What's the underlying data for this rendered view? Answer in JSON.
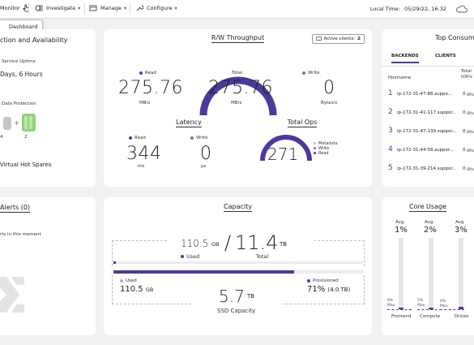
{
  "topbar": {
    "monitor": "Monitor",
    "investigate": "Investigate",
    "manage": "Manage",
    "configure": "Configure",
    "local_time_label": "Local Time:",
    "local_time_value": "05/29/22, 16:32",
    "tooltip": "Dashboard"
  },
  "colors": {
    "accent": "#4a3a9a",
    "green": "#8fd17a",
    "gray": "#c6c6c6"
  },
  "protection": {
    "title": "ction and Availability",
    "uptime_label": "Service Uptime",
    "uptime_value": "Days, 6 Hours",
    "dp_label": "Data Protection",
    "dp_left": "4",
    "dp_plus": "+",
    "dp_right": "2",
    "spares": "Virtual Hot Spares"
  },
  "rw": {
    "title": "R/W Throughput",
    "active_clients_label": "Active clients:",
    "active_clients_value": "2",
    "read_label": "Read",
    "read_value": "275.76",
    "read_unit": "MB/s",
    "total_label": "Total",
    "total_value": "275.76",
    "total_unit": "MB/s",
    "write_label": "Write",
    "write_value": "0",
    "write_unit": "Bytes/s",
    "latency_title": "Latency",
    "lat_read_label": "Read",
    "lat_read_value": "344",
    "lat_read_unit": "ms",
    "lat_write_label": "Write",
    "lat_write_value": "0",
    "lat_write_unit": "μs",
    "ops_title": "Total Ops",
    "ops_value": "271",
    "ops_legend": [
      "Metadata",
      "Write",
      "Read"
    ]
  },
  "consumers": {
    "title": "Top Consum",
    "tabs": [
      "BACKENDS",
      "CLIENTS"
    ],
    "col_hostname": "Hostname",
    "col_total": "Total",
    "col_total2": "IOP/s",
    "rows": [
      {
        "rank": "1",
        "host": "ip-172-31-47-88.suppo...",
        "value": "0",
        "unit": "OP/s"
      },
      {
        "rank": "2",
        "host": "ip-172-31-41-117.suppor...",
        "value": "0",
        "unit": "OP/s"
      },
      {
        "rank": "3",
        "host": "ip-172-31-47-139.suppor...",
        "value": "0",
        "unit": "OP/s"
      },
      {
        "rank": "4",
        "host": "ip-172-31-44-58.suppor...",
        "value": "0",
        "unit": "OP/s"
      },
      {
        "rank": "5",
        "host": "ip-172-31-39-214.suppor...",
        "value": "0",
        "unit": "OP/s"
      }
    ]
  },
  "alerts": {
    "title": "Alerts (0)",
    "message": "rts in this moment"
  },
  "capacity": {
    "title": "Capacity",
    "used_value": "110.5",
    "used_unit": "GB",
    "used_label": "Used",
    "total_value": "11.4",
    "total_unit": "TB",
    "total_label": "Total",
    "used_fraction": 0.01,
    "ssd_used_label": "Used",
    "ssd_used_value": "110.5",
    "ssd_used_unit": "GB",
    "ssd_value": "5.7",
    "ssd_unit": "TB",
    "ssd_label": "SSD Capacity",
    "provisioned_label": "Provisioned",
    "provisioned_value": "71%",
    "provisioned_sub": "(4.0 TB)",
    "provisioned_fraction": 0.71
  },
  "core": {
    "title": "Core Usage",
    "bars": [
      {
        "avg_label": "Avg.",
        "avg": "1%",
        "max_pct": "6%",
        "max_label": "Max.",
        "name": "Frontend",
        "max_fraction": 0.06,
        "avg_fraction": 0.01
      },
      {
        "avg_label": "Avg.",
        "avg": "2%",
        "max_pct": "5%",
        "max_label": "Max.",
        "name": "Compute",
        "max_fraction": 0.05,
        "avg_fraction": 0.02
      },
      {
        "avg_label": "Avg.",
        "avg": "3%",
        "max_pct": "4%",
        "max_label": "Max.",
        "name": "Drives",
        "max_fraction": 0.04,
        "avg_fraction": 0.03
      }
    ]
  }
}
